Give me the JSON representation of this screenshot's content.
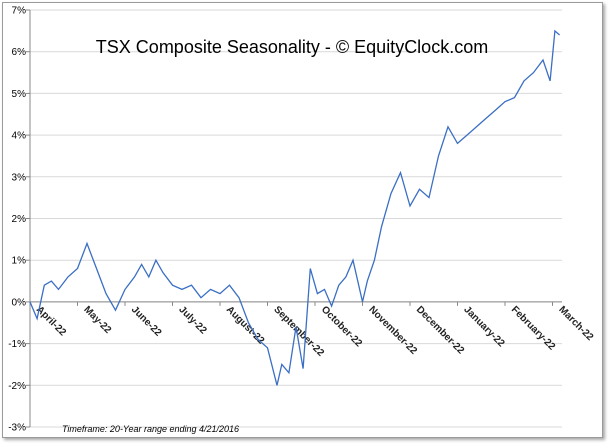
{
  "chart_data": {
    "type": "line",
    "title": "TSX Composite Seasonality - © EquityClock.com",
    "footnote": "Timeframe: 20-Year range ending 4/21/2016",
    "ylim": [
      -3,
      7
    ],
    "y_ticks": [
      -3,
      -2,
      -1,
      0,
      1,
      2,
      3,
      4,
      5,
      6,
      7
    ],
    "y_tick_labels": [
      "-3%",
      "-2%",
      "-1%",
      "0%",
      "1%",
      "2%",
      "3%",
      "4%",
      "5%",
      "6%",
      "7%"
    ],
    "months": [
      "April-22",
      "May-22",
      "June-22",
      "July-22",
      "August-22",
      "September-22",
      "October-22",
      "November-22",
      "December-22",
      "January-22",
      "February-22",
      "March-22"
    ],
    "grid": true,
    "line_color": "#3a6fc4",
    "x": [
      0,
      0.15,
      0.3,
      0.45,
      0.6,
      0.8,
      1.0,
      1.2,
      1.4,
      1.6,
      1.8,
      2.0,
      2.2,
      2.35,
      2.5,
      2.65,
      2.8,
      3.0,
      3.2,
      3.4,
      3.6,
      3.8,
      4.0,
      4.2,
      4.4,
      4.6,
      4.8,
      5.0,
      5.2,
      5.3,
      5.45,
      5.6,
      5.75,
      5.9,
      6.05,
      6.2,
      6.35,
      6.5,
      6.65,
      6.8,
      7.0,
      7.1,
      7.25,
      7.4,
      7.6,
      7.8,
      8.0,
      8.2,
      8.4,
      8.6,
      8.8,
      9.0,
      9.2,
      9.4,
      9.6,
      9.8,
      10.0,
      10.2,
      10.4,
      10.6,
      10.8,
      10.95,
      11.05,
      11.15
    ],
    "values": [
      0.0,
      -0.4,
      0.4,
      0.5,
      0.3,
      0.6,
      0.8,
      1.4,
      0.8,
      0.2,
      -0.2,
      0.3,
      0.6,
      0.9,
      0.6,
      1.0,
      0.7,
      0.4,
      0.3,
      0.4,
      0.1,
      0.3,
      0.2,
      0.4,
      0.1,
      -0.5,
      -0.9,
      -1.1,
      -2.0,
      -1.5,
      -1.7,
      -0.6,
      -1.6,
      0.8,
      0.2,
      0.3,
      -0.1,
      0.4,
      0.6,
      1.0,
      0.0,
      0.5,
      1.0,
      1.8,
      2.6,
      3.1,
      2.3,
      2.7,
      2.5,
      3.5,
      4.2,
      3.8,
      4.0,
      4.2,
      4.4,
      4.6,
      4.8,
      4.9,
      5.3,
      5.5,
      5.8,
      5.3,
      6.5,
      6.4
    ]
  }
}
